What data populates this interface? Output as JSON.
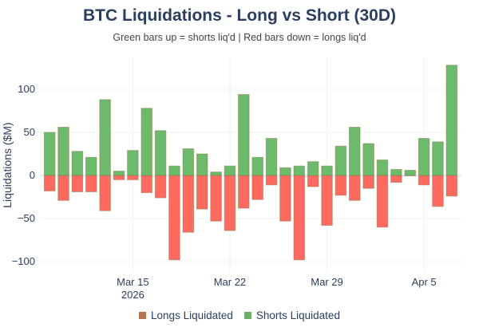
{
  "chart_data": {
    "type": "bar",
    "title": "BTC Liquidations - Long vs Short (30D)",
    "subtitle": "Green bars up = shorts liq'd | Red bars down = longs liq'd",
    "ylabel": "Liquidations ($M)",
    "xlabel": "",
    "ylim": [
      -113,
      137
    ],
    "yticks": [
      100,
      50,
      0,
      -50,
      -100
    ],
    "ytick_labels": [
      "100",
      "50",
      "0",
      "−50",
      "−100"
    ],
    "xticks": [
      {
        "date": "2026-03-15",
        "label": "Mar 15",
        "sublabel": "2026"
      },
      {
        "date": "2026-03-22",
        "label": "Mar 22"
      },
      {
        "date": "2026-03-29",
        "label": "Mar 29"
      },
      {
        "date": "2026-04-05",
        "label": "Apr 5"
      }
    ],
    "grid": true,
    "legend_placement": "bottom",
    "categories": [
      "2026-03-09",
      "2026-03-10",
      "2026-03-11",
      "2026-03-12",
      "2026-03-13",
      "2026-03-14",
      "2026-03-15",
      "2026-03-16",
      "2026-03-17",
      "2026-03-18",
      "2026-03-19",
      "2026-03-20",
      "2026-03-21",
      "2026-03-22",
      "2026-03-23",
      "2026-03-24",
      "2026-03-25",
      "2026-03-26",
      "2026-03-27",
      "2026-03-28",
      "2026-03-29",
      "2026-03-30",
      "2026-03-31",
      "2026-04-01",
      "2026-04-02",
      "2026-04-03",
      "2026-04-04",
      "2026-04-05",
      "2026-04-06",
      "2026-04-07"
    ],
    "series": [
      {
        "name": "Longs Liquidated",
        "color": "#ff5a4f",
        "legend_color": "#b5764f",
        "values": [
          -18,
          -29,
          -19,
          -19,
          -41,
          -5,
          -5,
          -20,
          -26,
          -98,
          -66,
          -39,
          -53,
          -64,
          -38,
          -28,
          -11,
          -53,
          -98,
          -13,
          -58,
          -23,
          -29,
          -15,
          -60,
          -8,
          0,
          -11,
          -36,
          -24
        ]
      },
      {
        "name": "Shorts Liquidated",
        "color": "#5cb35c",
        "legend_color": "#6ab06a",
        "values": [
          50,
          56,
          28,
          21,
          88,
          5,
          29,
          78,
          52,
          11,
          31,
          25,
          4,
          11,
          94,
          21,
          43,
          9,
          11,
          16,
          11,
          34,
          56,
          37,
          18,
          7,
          6,
          43,
          39,
          128
        ]
      }
    ]
  }
}
